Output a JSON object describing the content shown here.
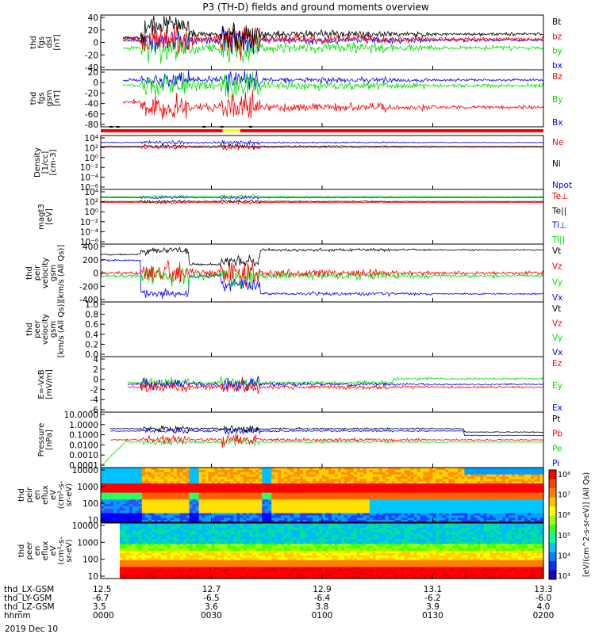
{
  "chart_data": {
    "type": "line",
    "title": "P3 (TH-D) fields and ground moments overview",
    "date_label": "2019 Dec 10",
    "orbit_rows": [
      {
        "name": "thd_LX-GSM",
        "values": [
          "12.5",
          "12.7",
          "12.9",
          "13.1",
          "13.3"
        ]
      },
      {
        "name": "thd_LY-GSM",
        "values": [
          "-6.7",
          "-6.5",
          "-6.4",
          "-6.2",
          "-6.0"
        ]
      },
      {
        "name": "thd_LZ-GSM",
        "values": [
          "3.5",
          "3.6",
          "3.8",
          "3.9",
          "4.0"
        ]
      },
      {
        "name": "hhmm",
        "values": [
          "0000",
          "0030",
          "0100",
          "0130",
          "0200"
        ]
      }
    ],
    "colors": {
      "black": "#000000",
      "red": "#ff0000",
      "green": "#00e000",
      "blue": "#0000ff"
    },
    "panels": [
      {
        "id": "fgs-dsl",
        "ylabel": [
          "thd",
          "fgs",
          "dsl",
          "[nT]"
        ],
        "ticks": [
          "40",
          "20",
          "0",
          "-20",
          "-40"
        ],
        "legend": [
          {
            "name": "Bt",
            "color": "black"
          },
          {
            "name": "bz",
            "color": "red"
          },
          {
            "name": "by",
            "color": "green"
          },
          {
            "name": "bx",
            "color": "blue"
          }
        ]
      },
      {
        "id": "fgs-gsm",
        "ylabel": [
          "thd",
          "fgs",
          "gsm",
          "[nT]"
        ],
        "ticks": [
          "20",
          "0",
          "-20",
          "-40",
          "-60",
          "-80"
        ],
        "legend": [
          {
            "name": "Bz",
            "color": "red"
          },
          {
            "name": "By",
            "color": "green"
          },
          {
            "name": "Bx",
            "color": "blue"
          }
        ]
      },
      {
        "id": "density",
        "ylabel": [
          "Density",
          "[1/cc]",
          "[cm-3]"
        ],
        "ticks": [
          "10⁴",
          "10²",
          "10⁰",
          "10⁻²",
          "10⁻⁴",
          "10⁻⁶"
        ],
        "legend": [
          {
            "name": "Ne",
            "color": "red"
          },
          {
            "name": "Ni",
            "color": "black"
          },
          {
            "name": "Npot",
            "color": "blue"
          }
        ]
      },
      {
        "id": "temp",
        "ylabel": [
          "magt3",
          "[eV]"
        ],
        "ticks": [
          "10⁴",
          "10²",
          "10⁰",
          "10⁻²",
          "10⁻⁴",
          "10⁻⁶"
        ],
        "legend": [
          {
            "name": "Te⊥",
            "color": "red"
          },
          {
            "name": "Te||",
            "color": "black"
          },
          {
            "name": "Ti⊥",
            "color": "blue"
          },
          {
            "name": "Ti||",
            "color": "green"
          }
        ]
      },
      {
        "id": "peir-vel",
        "ylabel": [
          "thd",
          "peir",
          "velocity",
          "gsm",
          "[km/s (All Qs)]"
        ],
        "ticks": [
          "400",
          "200",
          "0",
          "-200",
          "-400"
        ],
        "legend": [
          {
            "name": "Vt",
            "color": "black"
          },
          {
            "name": "Vz",
            "color": "red"
          },
          {
            "name": "Vy",
            "color": "green"
          },
          {
            "name": "Vx",
            "color": "blue"
          }
        ]
      },
      {
        "id": "peer-vel",
        "ylabel": [
          "thd",
          "peer",
          "velocity",
          "gsm",
          "[km/s (All Qs)]"
        ],
        "ticks": [
          "1.0",
          "0.8",
          "0.6",
          "0.4",
          "0.2",
          "0.0"
        ],
        "legend": [
          {
            "name": "Vt",
            "color": "black"
          },
          {
            "name": "Vz",
            "color": "red"
          },
          {
            "name": "Vy",
            "color": "green"
          },
          {
            "name": "Vx",
            "color": "blue"
          }
        ]
      },
      {
        "id": "efield",
        "ylabel": [
          "E=-VxB",
          "[mV/m]"
        ],
        "ticks": [
          "4",
          "2",
          "0",
          "-2",
          "-4",
          "-6"
        ],
        "legend": [
          {
            "name": "Ez",
            "color": "red"
          },
          {
            "name": "Ey",
            "color": "green"
          },
          {
            "name": "Ex",
            "color": "blue"
          }
        ]
      },
      {
        "id": "pressure",
        "ylabel": [
          "Pressure",
          "[nPa]"
        ],
        "ticks": [
          "10.0000",
          "1.0000",
          "0.1000",
          "0.0100",
          "0.0010",
          "0.0001"
        ],
        "legend": [
          {
            "name": "Pt",
            "color": "black"
          },
          {
            "name": "Pb",
            "color": "red"
          },
          {
            "name": "Pe",
            "color": "green"
          },
          {
            "name": "Pi",
            "color": "blue"
          }
        ]
      },
      {
        "id": "peir-spec",
        "ylabel": [
          "thd",
          "peir",
          "en",
          "eflux",
          "eV",
          "(cm²-s-",
          "sr-eV)"
        ],
        "ticks": [
          "10000",
          "1000",
          "100",
          "10"
        ]
      },
      {
        "id": "peer-spec",
        "ylabel": [
          "thd",
          "peer",
          "en",
          "eflux",
          "eV",
          "(cm²-s-",
          "sr-eV)"
        ],
        "ticks": [
          "10000",
          "1000",
          "100",
          "10"
        ]
      }
    ],
    "colorbar": {
      "ticks": [
        "10⁸",
        "10⁷",
        "10⁶",
        "10⁵",
        "10⁴",
        "10³"
      ],
      "label": "[eV/(cm^2-s-sr-eV)] (All Qs)"
    }
  }
}
